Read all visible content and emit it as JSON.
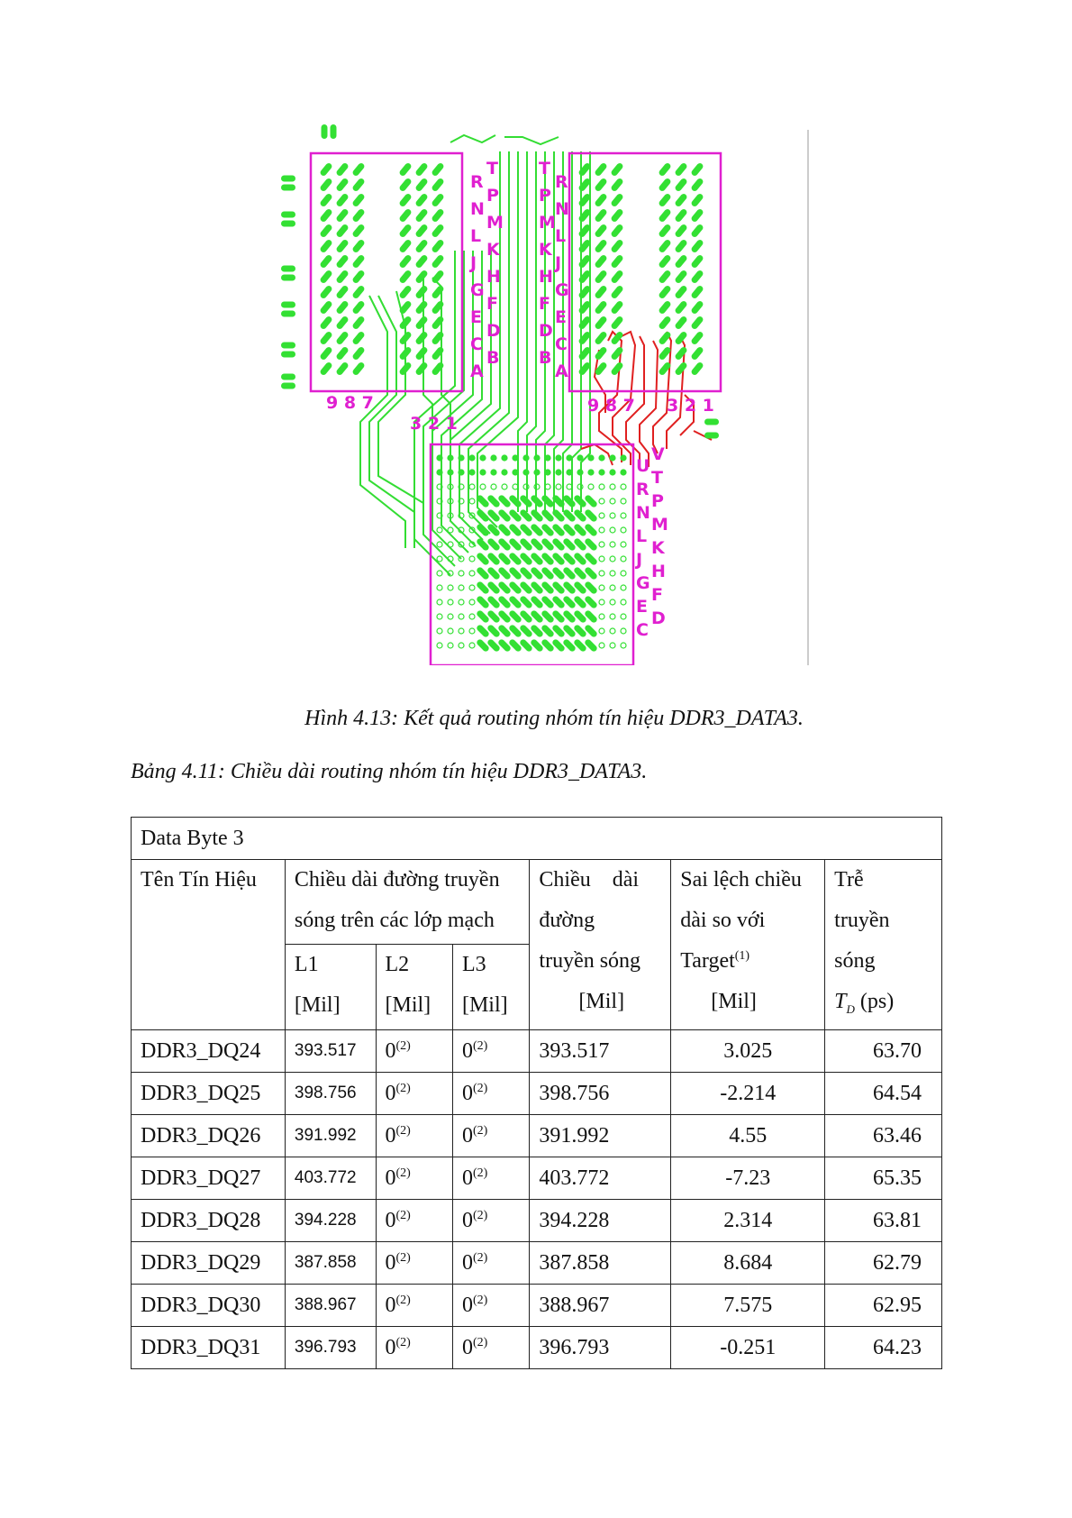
{
  "figure": {
    "caption": "Hình 4.13: Kết quả routing nhóm tín hiệu DDR3_DATA3.",
    "chip_left_rows": [
      "R",
      "N",
      "L",
      "J",
      "G",
      "E",
      "C",
      "A"
    ],
    "chip_left_rows2": [
      "T",
      "P",
      "M",
      "K",
      "H",
      "F",
      "D",
      "B"
    ],
    "chip_left_cols": "9 8 7",
    "chip_left_cols2": "3 2 1",
    "chip_right_rows": [
      "T",
      "P",
      "M",
      "K",
      "H",
      "F",
      "D",
      "B"
    ],
    "chip_right_rows2": [
      "R",
      "N",
      "L",
      "J",
      "G",
      "E",
      "C",
      "A"
    ],
    "chip_right_cols": "9 8 7",
    "chip_right_cols2": "3 2 1",
    "soc_rows": [
      "U",
      "R",
      "N",
      "L",
      "J",
      "G",
      "E",
      "C"
    ],
    "soc_rows2": [
      "V",
      "T",
      "P",
      "M",
      "K",
      "H",
      "F",
      "D"
    ],
    "colors": {
      "outline": "#e020d0",
      "pads": "#33e033",
      "highlight": "#e02020",
      "trace": "#33dd33"
    }
  },
  "table": {
    "caption": "Bảng 4.11: Chiều dài routing nhóm tín hiệu DDR3_DATA3.",
    "group": "Data Byte 3",
    "headers": {
      "signal": "Tên Tín Hiệu",
      "layers_group": [
        "Chiều dài đường truyền",
        "sóng trên các lớp mạch"
      ],
      "l1": [
        "L1",
        "[Mil]"
      ],
      "l2": [
        "L2",
        "[Mil]"
      ],
      "l3": [
        "L3",
        "[Mil]"
      ],
      "total": [
        "Chiều    dài",
        "đường",
        "truyền sóng",
        "[Mil]"
      ],
      "dev": [
        "Sai lệch chiều",
        "dài so với",
        "Target",
        "[Mil]"
      ],
      "dev_sup": "(1)",
      "delay": [
        "Trễ",
        "truyền",
        "sóng"
      ],
      "delay_sym": "T",
      "delay_sub": "D",
      "delay_unit": "(ps)"
    },
    "zero_value": "0",
    "zero_sup": "(2)",
    "rows": [
      {
        "signal": "DDR3_DQ24",
        "l1": "393.517",
        "total": "393.517",
        "dev": "3.025",
        "delay": "63.70"
      },
      {
        "signal": "DDR3_DQ25",
        "l1": "398.756",
        "total": "398.756",
        "dev": "-2.214",
        "delay": "64.54"
      },
      {
        "signal": "DDR3_DQ26",
        "l1": "391.992",
        "total": "391.992",
        "dev": "4.55",
        "delay": "63.46"
      },
      {
        "signal": "DDR3_DQ27",
        "l1": "403.772",
        "total": "403.772",
        "dev": "-7.23",
        "delay": "65.35"
      },
      {
        "signal": "DDR3_DQ28",
        "l1": "394.228",
        "total": "394.228",
        "dev": "2.314",
        "delay": "63.81"
      },
      {
        "signal": "DDR3_DQ29",
        "l1": "387.858",
        "total": "387.858",
        "dev": "8.684",
        "delay": "62.79"
      },
      {
        "signal": "DDR3_DQ30",
        "l1": "388.967",
        "total": "388.967",
        "dev": "7.575",
        "delay": "62.95"
      },
      {
        "signal": "DDR3_DQ31",
        "l1": "396.793",
        "total": "396.793",
        "dev": "-0.251",
        "delay": "64.23"
      }
    ]
  }
}
